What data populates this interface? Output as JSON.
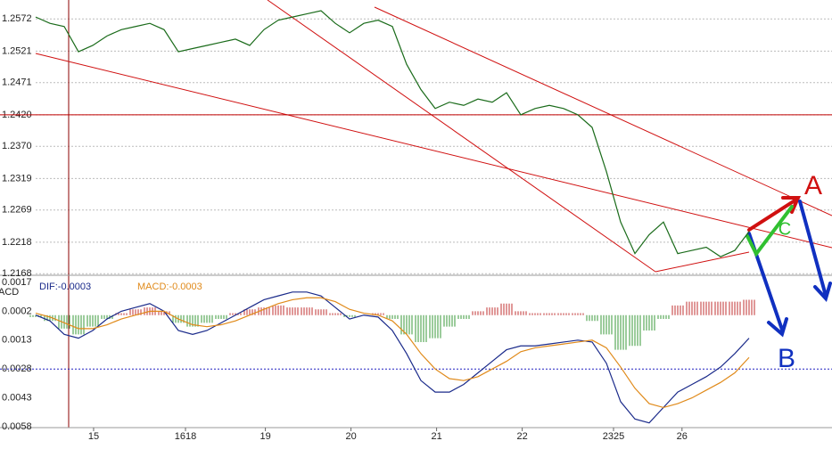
{
  "chart_data": [
    {
      "type": "line",
      "ylim": [
        1.2167,
        1.2602
      ],
      "xlim": [
        0,
        56
      ],
      "yticks": [
        1.2168,
        1.2218,
        1.2269,
        1.2319,
        {
          "value": 1.237,
          "label": "1.2370"
        },
        {
          "value": 1.242,
          "label": "1.2420"
        },
        1.2471,
        1.2521,
        1.2572
      ],
      "grid": true,
      "hline": {
        "value": 1.242,
        "color": "#c00000"
      },
      "x": [
        0,
        1,
        2,
        3,
        4,
        5,
        6,
        7,
        8,
        9,
        10,
        11,
        12,
        13,
        14,
        15,
        16,
        17,
        18,
        19,
        20,
        21,
        22,
        23,
        24,
        25,
        26,
        27,
        28,
        29,
        30,
        31,
        32,
        33,
        34,
        35,
        36,
        37,
        38,
        39,
        40,
        41,
        42,
        43,
        44,
        45,
        46,
        47,
        48,
        49,
        50
      ],
      "series": [
        {
          "color": "#1a6b1a",
          "values": [
            1.2575,
            1.2565,
            1.256,
            1.252,
            1.253,
            1.2545,
            1.2555,
            1.256,
            1.2565,
            1.2555,
            1.252,
            1.2525,
            1.253,
            1.2535,
            1.254,
            1.253,
            1.2555,
            1.257,
            1.2575,
            1.258,
            1.2585,
            1.2565,
            1.255,
            1.2565,
            1.257,
            1.256,
            1.25,
            1.246,
            1.243,
            1.244,
            1.2435,
            1.2445,
            1.244,
            1.2455,
            1.242,
            1.243,
            1.2435,
            1.243,
            1.242,
            1.24,
            1.233,
            1.225,
            1.22,
            1.223,
            1.225,
            1.22,
            1.2205,
            1.221,
            1.2195,
            1.2205,
            1.2235
          ]
        }
      ],
      "annotations": [
        "A",
        "B",
        "C"
      ]
    },
    {
      "type": "macd",
      "ylim": [
        -0.0058,
        0.0017
      ],
      "xlim": [
        0,
        56
      ],
      "yticks": [
        {
          "value": -0.0058,
          "label": "0.0058"
        },
        {
          "value": -0.0043,
          "label": "0.0043"
        },
        {
          "value": -0.0028,
          "label": "0.0028"
        },
        {
          "value": -0.0013,
          "label": "0.0013"
        },
        0.0002,
        0.0017
      ],
      "y_label": "ACD",
      "hline": {
        "value": -0.0028,
        "color": "#2020c0"
      },
      "xticks": [
        {
          "value": 4.06,
          "label": "15"
        },
        {
          "value": 10.5,
          "label": "1618"
        },
        {
          "value": 16.1,
          "label": "19"
        },
        {
          "value": 22.1,
          "label": "20"
        },
        {
          "value": 28.1,
          "label": "21"
        },
        {
          "value": 34.1,
          "label": "22"
        },
        {
          "value": 40.5,
          "label": "2325"
        },
        {
          "value": 45.3,
          "label": "26"
        }
      ],
      "x": [
        0,
        1,
        2,
        3,
        4,
        5,
        6,
        7,
        8,
        9,
        10,
        11,
        12,
        13,
        14,
        15,
        16,
        17,
        18,
        19,
        20,
        21,
        22,
        23,
        24,
        25,
        26,
        27,
        28,
        29,
        30,
        31,
        32,
        33,
        34,
        35,
        36,
        37,
        38,
        39,
        40,
        41,
        42,
        43,
        44,
        45,
        46,
        47,
        48,
        49,
        50
      ],
      "histogram": {
        "up_color": "#c03030",
        "down_color": "#3a9a3a",
        "values": [
          -0.0001,
          -0.0003,
          -0.0007,
          -0.001,
          -0.0006,
          -0.0002,
          0.0001,
          0.0003,
          0.0004,
          0.0002,
          -0.0004,
          -0.0006,
          -0.0004,
          -0.0002,
          0.0001,
          0.0003,
          0.0004,
          0.0005,
          0.0004,
          0.0004,
          0.0003,
          0.0001,
          -0.0001,
          0,
          0.0001,
          -0.0002,
          -0.001,
          -0.0014,
          -0.0012,
          -0.0006,
          -0.0002,
          0.0002,
          0.0004,
          0.0006,
          0.0002,
          0.0001,
          0.0001,
          0.0001,
          0.0001,
          -0.0003,
          -0.001,
          -0.0018,
          -0.0016,
          -0.0008,
          -0.0002,
          0.0005,
          0.0007,
          0.0007,
          0.0007,
          0.0007,
          0.0008
        ]
      },
      "series": [
        {
          "name": "DIF:-0.0003",
          "color": "#1a2a8a",
          "values": [
            0,
            -0.0003,
            -0.001,
            -0.0012,
            -0.0008,
            -0.0002,
            0.0002,
            0.0004,
            0.0006,
            0.0002,
            -0.0008,
            -0.001,
            -0.0008,
            -0.0004,
            0,
            0.0004,
            0.0008,
            0.001,
            0.0012,
            0.0012,
            0.001,
            0.0004,
            -0.0002,
            0,
            -0.0001,
            -0.0008,
            -0.002,
            -0.0034,
            -0.004,
            -0.004,
            -0.0036,
            -0.003,
            -0.0024,
            -0.0018,
            -0.0016,
            -0.0016,
            -0.0015,
            -0.0014,
            -0.0013,
            -0.0014,
            -0.0025,
            -0.0045,
            -0.0054,
            -0.0056,
            -0.0048,
            -0.004,
            -0.0036,
            -0.0032,
            -0.0027,
            -0.002,
            -0.0012
          ]
        },
        {
          "name": "MACD:-0.0003",
          "color": "#e08a1a",
          "values": [
            0.0001,
            -0.0001,
            -0.0004,
            -0.0007,
            -0.0007,
            -0.0005,
            -0.0002,
            0,
            0.0002,
            0.0002,
            -0.0002,
            -0.0005,
            -0.0006,
            -0.0005,
            -0.0003,
            0,
            0.0003,
            0.0006,
            0.0008,
            0.0009,
            0.0009,
            0.0007,
            0.0003,
            0.0001,
            0,
            -0.0003,
            -0.001,
            -0.002,
            -0.0028,
            -0.0033,
            -0.0034,
            -0.0032,
            -0.0028,
            -0.0024,
            -0.0019,
            -0.0017,
            -0.0016,
            -0.0015,
            -0.0014,
            -0.0013,
            -0.0017,
            -0.0027,
            -0.0038,
            -0.0046,
            -0.0048,
            -0.0046,
            -0.0043,
            -0.0039,
            -0.0035,
            -0.003,
            -0.0022
          ]
        }
      ]
    }
  ]
}
